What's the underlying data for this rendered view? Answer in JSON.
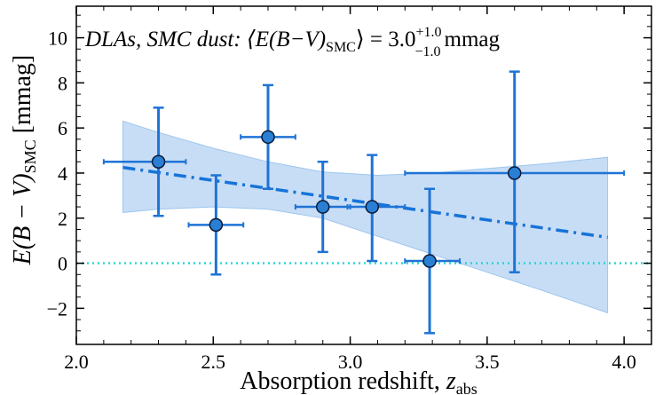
{
  "chart_data": {
    "type": "scatter",
    "title_main": "DLAs, SMC dust: ⟨E(B−V)",
    "title_sub": "SMC",
    "title_eq": "⟩ = 3.0",
    "title_sup": "+1.0",
    "title_subsc": "−1.0",
    "title_unit": "mmag",
    "xlabel_main": "Absorption redshift, ",
    "xlabel_var": "z",
    "xlabel_sub": "abs",
    "ylabel_main": "E(B − V)",
    "ylabel_sub": "SMC",
    "ylabel_unit": " [mmag]",
    "xlim": [
      2.0,
      4.1
    ],
    "ylim": [
      -3.6,
      11.4
    ],
    "xticks": [
      2.0,
      2.5,
      3.0,
      3.5,
      4.0
    ],
    "xtick_labels": [
      "2.0",
      "2.5",
      "3.0",
      "3.5",
      "4.0"
    ],
    "yticks": [
      -2,
      0,
      2,
      4,
      6,
      8,
      10
    ],
    "ytick_labels": [
      "−2",
      "0",
      "2",
      "4",
      "6",
      "8",
      "10"
    ],
    "points": [
      {
        "x": 2.3,
        "y": 4.5,
        "xlo": 2.1,
        "xhi": 2.4,
        "ylo": 2.1,
        "yhi": 6.9
      },
      {
        "x": 2.51,
        "y": 1.7,
        "xlo": 2.41,
        "xhi": 2.61,
        "ylo": -0.5,
        "yhi": 3.9
      },
      {
        "x": 2.7,
        "y": 5.6,
        "xlo": 2.6,
        "xhi": 2.8,
        "ylo": 3.3,
        "yhi": 7.9
      },
      {
        "x": 2.9,
        "y": 2.5,
        "xlo": 2.8,
        "xhi": 3.0,
        "ylo": 0.5,
        "yhi": 4.5
      },
      {
        "x": 3.08,
        "y": 2.5,
        "xlo": 2.99,
        "xhi": 3.2,
        "ylo": 0.1,
        "yhi": 4.8
      },
      {
        "x": 3.29,
        "y": 0.1,
        "xlo": 3.2,
        "xhi": 3.4,
        "ylo": -3.1,
        "yhi": 3.3
      },
      {
        "x": 3.6,
        "y": 4.0,
        "xlo": 3.2,
        "xhi": 4.0,
        "ylo": -0.4,
        "yhi": 8.5
      }
    ],
    "fit_line": {
      "x": [
        2.17,
        3.94
      ],
      "y": [
        4.25,
        1.15
      ]
    },
    "confidence_band": {
      "x": [
        2.17,
        2.3,
        2.5,
        2.7,
        2.9,
        3.1,
        3.3,
        3.5,
        3.7,
        3.94
      ],
      "upper": [
        6.3,
        5.8,
        5.1,
        4.5,
        4.05,
        3.9,
        4.0,
        4.2,
        4.4,
        4.7
      ],
      "lower": [
        2.25,
        2.4,
        2.5,
        2.4,
        2.0,
        1.2,
        0.4,
        -0.4,
        -1.2,
        -2.2
      ]
    },
    "zero_line": 0,
    "colors": {
      "points": "#1f73d6",
      "point_fill": "#2a7fd4",
      "fit": "#1673d9",
      "band": "#c7ddf5",
      "band_edge": "#9ec6ee",
      "zero": "#2ad6d0"
    }
  }
}
